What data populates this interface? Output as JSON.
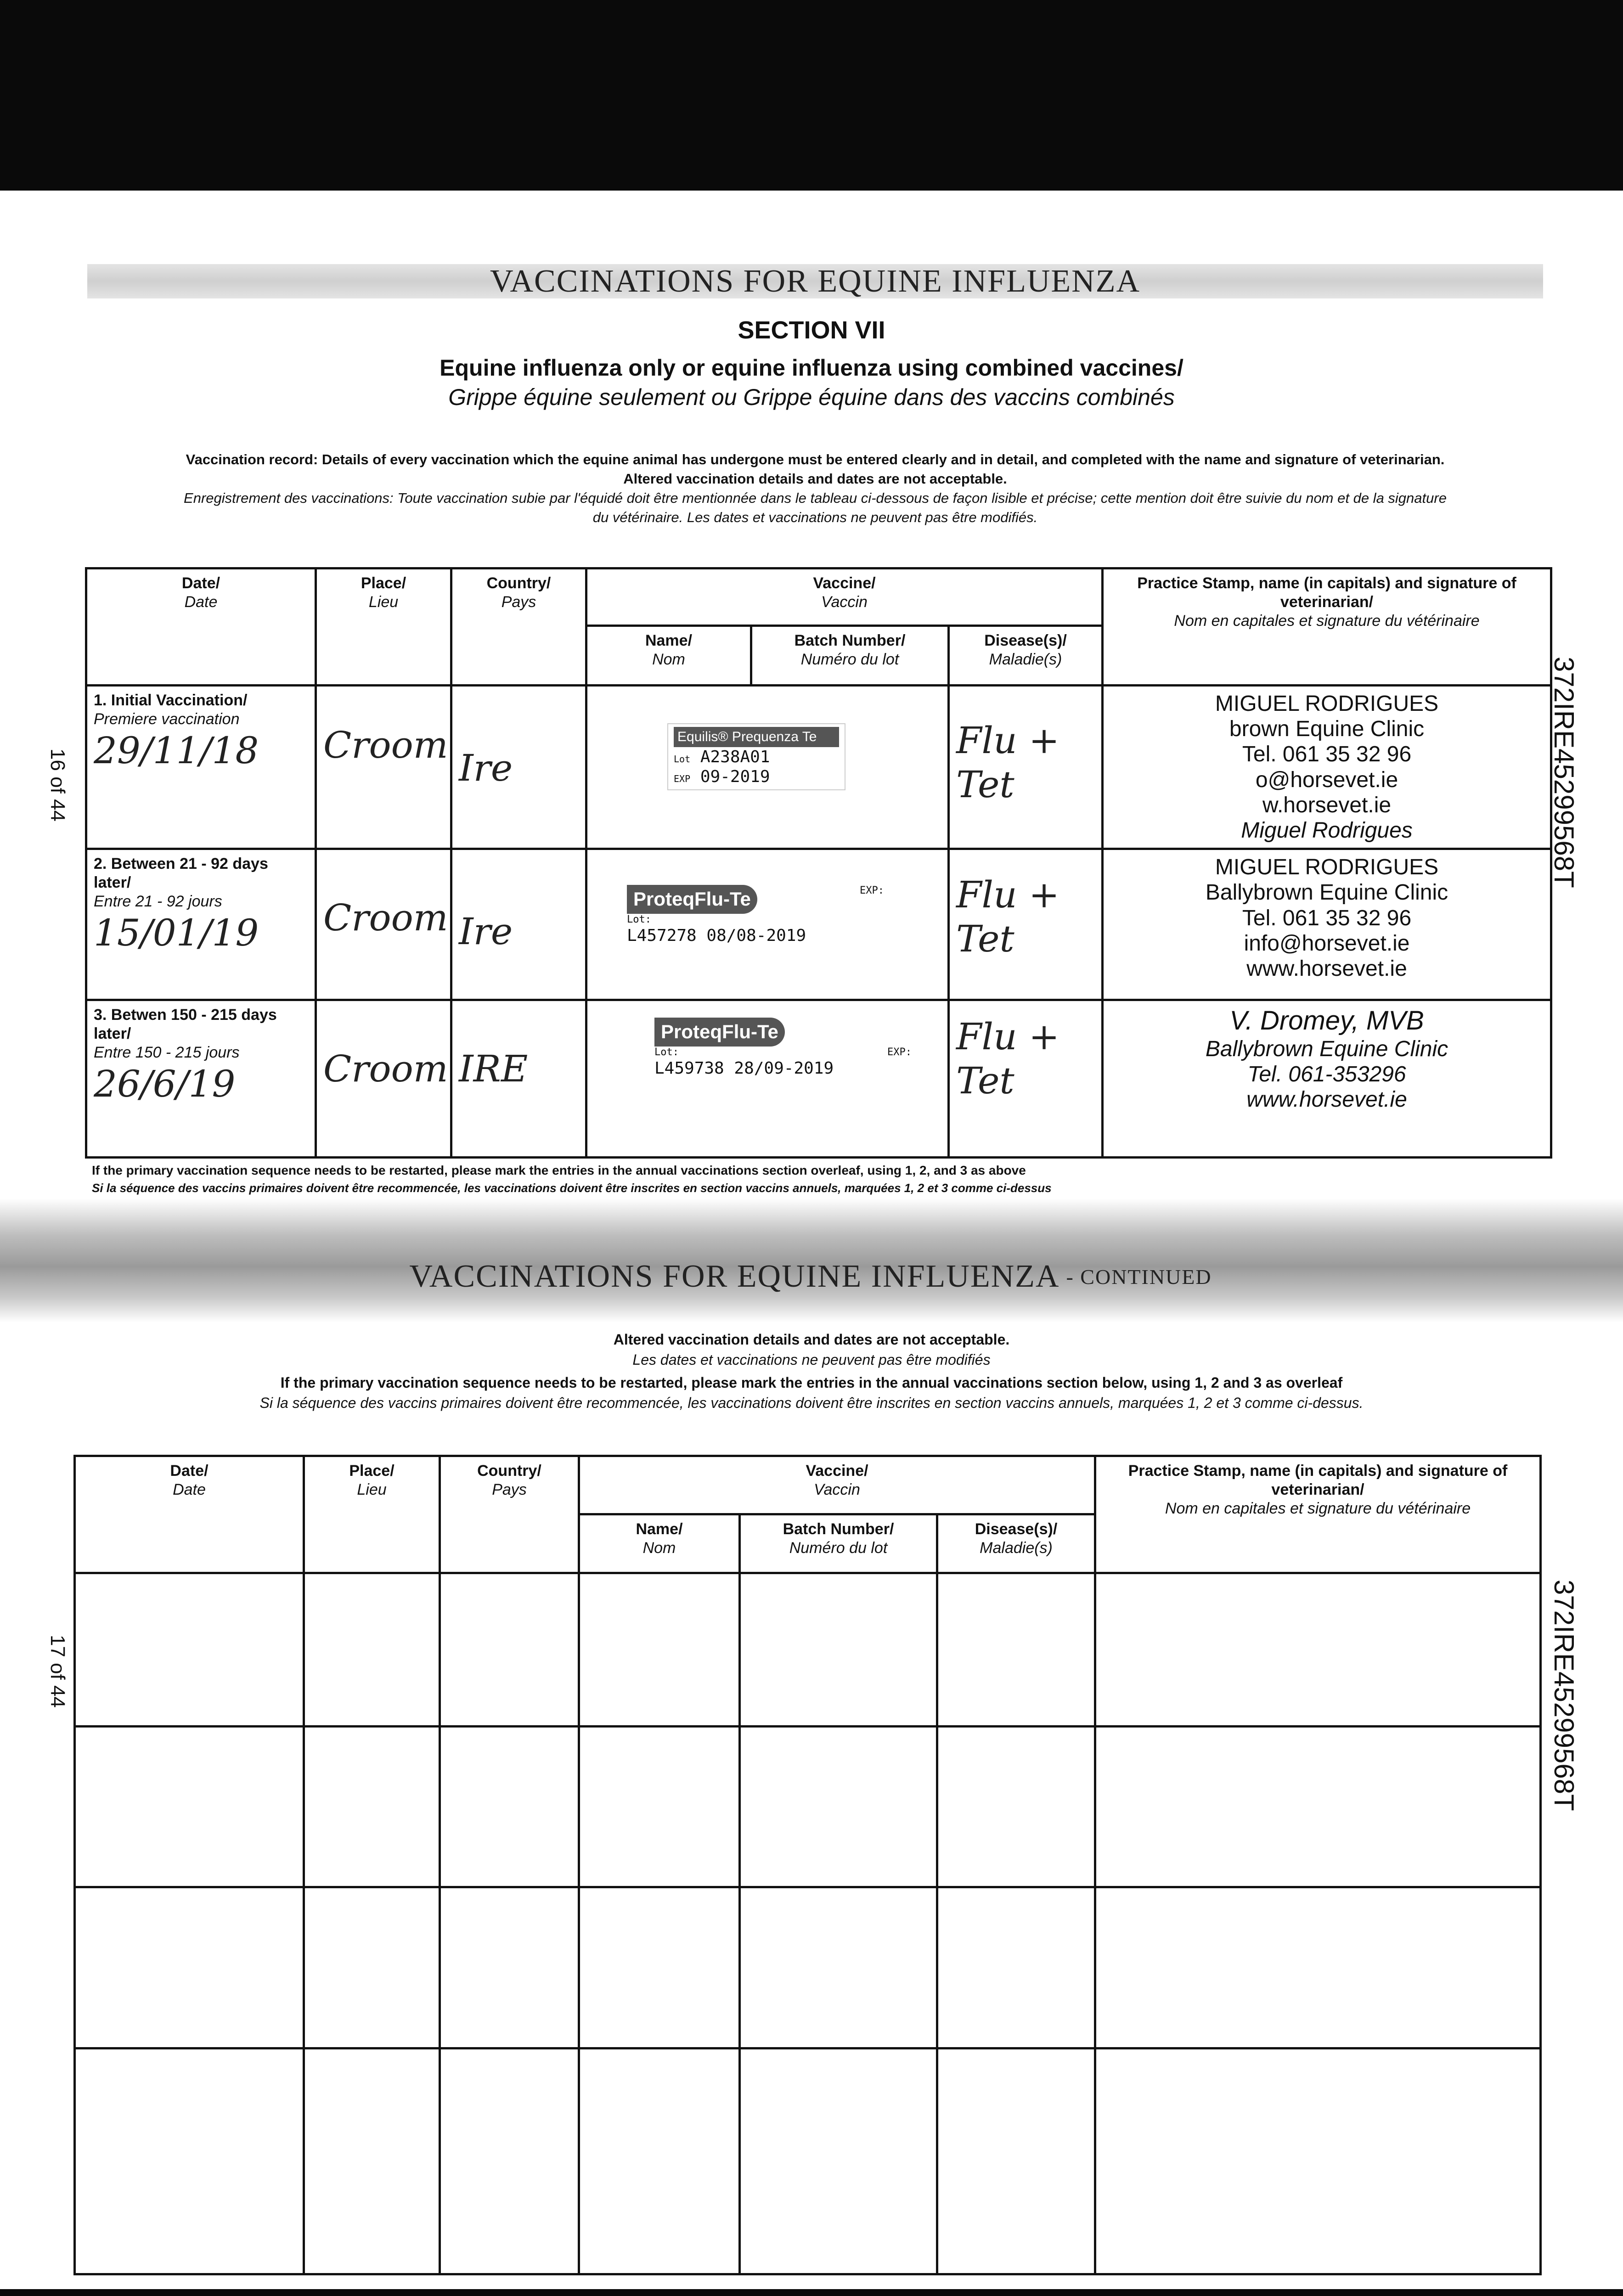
{
  "page1": {
    "heading": "VACCINATIONS FOR EQUINE INFLUENZA",
    "section": "SECTION VII",
    "subtitle_en": "Equine influenza only or equine influenza using combined vaccines/",
    "subtitle_fr": "Grippe équine seulement ou Grippe équine dans des vaccins combinés",
    "instructions_en_1": "Vaccination record: Details of every vaccination which the equine animal has undergone must be entered clearly and in detail, and completed with the name and signature of veterinarian.",
    "instructions_en_2": "Altered vaccination details and dates are not acceptable.",
    "instructions_fr_1": "Enregistrement des vaccinations: Toute vaccination subie par l'équidé doit être mentionnée dans le tableau ci-dessous de façon lisible et précise; cette mention doit être suivie du nom et de la signature",
    "instructions_fr_2": "du vétérinaire. Les dates et vaccinations ne peuvent pas être modifiés.",
    "page_number": "16 of 44",
    "serial": "372IRE45299568T",
    "footnote_en": "If the primary vaccination sequence needs to be restarted, please mark the entries in the annual vaccinations section overleaf, using 1, 2, and 3 as above",
    "footnote_fr": "Si la séquence des vaccins primaires doivent être recommencée, les vaccinations doivent être inscrites en section vaccins annuels, marquées 1, 2 et 3 comme ci-dessus",
    "rows": [
      {
        "label_en": "1. Initial Vaccination/",
        "label_fr": "Premiere vaccination",
        "date": "29/11/18",
        "place": "Croom",
        "country": "Ire",
        "sticker_brand": "Equilis® Prequenza Te",
        "sticker_lot_label": "Lot",
        "sticker_lot": "A238A01",
        "sticker_exp_label": "EXP",
        "sticker_exp": "09-2019",
        "disease": "Flu + Tet",
        "stamp": [
          "MIGUEL RODRIGUES",
          "brown Equine Clinic",
          "Tel. 061 35 32 96",
          "o@horsevet.ie",
          "w.horsevet.ie",
          "Miguel Rodrigues"
        ]
      },
      {
        "label_en": "2. Between 21 - 92 days later/",
        "label_fr": "Entre 21 - 92 jours",
        "date": "15/01/19",
        "place": "Croom",
        "country": "Ire",
        "sticker_brand": "ProteqFlu-Te",
        "sticker_lot_label": "Lot:",
        "sticker_lot": "L457278",
        "sticker_exp_label": "EXP:",
        "sticker_exp": "08/08-2019",
        "disease": "Flu + Tet",
        "stamp": [
          "MIGUEL RODRIGUES",
          "Ballybrown Equine Clinic",
          "Tel. 061 35 32 96",
          "info@horsevet.ie",
          "www.horsevet.ie"
        ]
      },
      {
        "label_en": "3. Betwen 150 - 215 days later/",
        "label_fr": "Entre 150 - 215 jours",
        "date": "26/6/19",
        "place": "Croom",
        "country": "IRE",
        "sticker_brand": "ProteqFlu-Te",
        "sticker_lot_label": "Lot:",
        "sticker_lot": "L459738",
        "sticker_exp_label": "EXP:",
        "sticker_exp": "28/09-2019",
        "disease": "Flu + Tet",
        "stamp": [
          "V. Dromey, MVB",
          "Ballybrown Equine Clinic",
          "Tel. 061-353296",
          "www.horsevet.ie"
        ]
      }
    ]
  },
  "table_headers": {
    "date_en": "Date/",
    "date_fr": "Date",
    "place_en": "Place/",
    "place_fr": "Lieu",
    "country_en": "Country/",
    "country_fr": "Pays",
    "vaccine_en": "Vaccine/",
    "vaccine_fr": "Vaccin",
    "name_en": "Name/",
    "name_fr": "Nom",
    "batch_en": "Batch Number/",
    "batch_fr": "Numéro du lot",
    "disease_en": "Disease(s)/",
    "disease_fr": "Maladie(s)",
    "stamp_en": "Practice Stamp, name (in capitals) and signature of veterinarian/",
    "stamp_fr": "Nom en capitales et signature du vétérinaire"
  },
  "page2": {
    "heading": "VACCINATIONS FOR EQUINE INFLUENZA",
    "heading_suffix": "- CONTINUED",
    "altered_en": "Altered vaccination details and dates are not acceptable.",
    "altered_fr": "Les dates et vaccinations ne peuvent pas être modifiés",
    "restart_en": "If the primary vaccination sequence needs to be restarted, please mark the entries in the annual vaccinations section below, using 1, 2 and 3 as overleaf",
    "restart_fr": "Si la séquence des vaccins primaires doivent être recommencée, les vaccinations doivent être inscrites en section vaccins annuels, marquées 1, 2 et 3 comme ci-dessus.",
    "page_number": "17 of 44",
    "serial": "372IRE45299568T"
  }
}
